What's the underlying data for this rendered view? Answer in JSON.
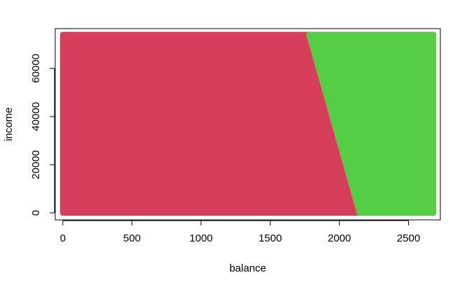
{
  "chart_data": {
    "type": "scatter",
    "title": "",
    "xlabel": "balance",
    "ylabel": "income",
    "xlim": [
      -55,
      2730
    ],
    "ylim": [
      -2900,
      76500
    ],
    "x_ticks": [
      0,
      500,
      1000,
      1500,
      2000,
      2500
    ],
    "y_ticks": [
      0,
      20000,
      40000,
      60000
    ],
    "grid": false,
    "legend": "none",
    "regions": [
      {
        "class": "red",
        "color": "#D53E58",
        "polygon": [
          [
            0,
            0
          ],
          [
            0,
            74000
          ],
          [
            1780,
            74000
          ],
          [
            2145,
            0
          ]
        ]
      },
      {
        "class": "green",
        "color": "#54CC43",
        "polygon": [
          [
            1780,
            74000
          ],
          [
            2680,
            74000
          ],
          [
            2680,
            0
          ],
          [
            2145,
            0
          ]
        ]
      }
    ],
    "point_grid": {
      "x_range": [
        0,
        2680
      ],
      "y_range": [
        0,
        74000
      ],
      "boundary": [
        [
          1780,
          74000
        ],
        [
          1820,
          72000
        ],
        [
          2145,
          0
        ]
      ]
    }
  }
}
